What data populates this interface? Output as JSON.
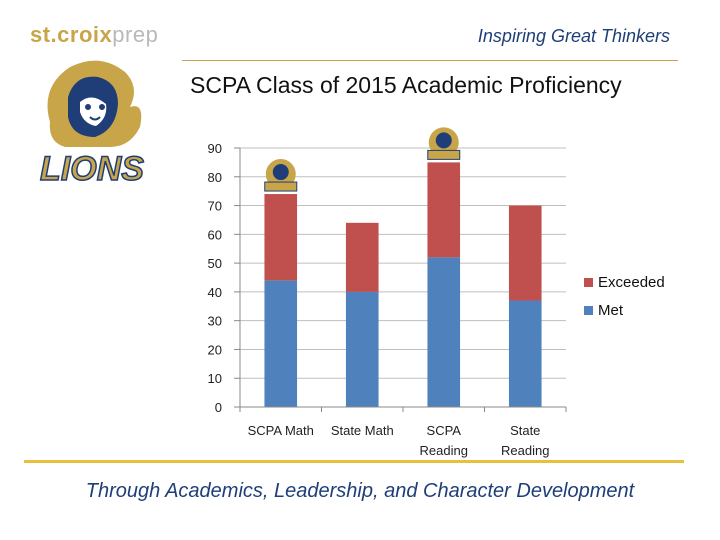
{
  "header": {
    "brand_main": "st.croix",
    "brand_suffix": "prep",
    "tagline": "Inspiring Great Thinkers",
    "crest_text": "LIONS"
  },
  "footer": {
    "text": "Through Academics, Leadership, and Character Development"
  },
  "colors": {
    "met": "#4f81bd",
    "exceeded": "#c0504d",
    "gold": "#c9a54a",
    "navy": "#1f3e78"
  },
  "chart_data": {
    "type": "bar",
    "stacked": true,
    "title": "SCPA Class of 2015 Academic Proficiency",
    "categories": [
      [
        "SCPA Math"
      ],
      [
        "State Math"
      ],
      [
        "SCPA",
        "Reading"
      ],
      [
        "State",
        "Reading"
      ]
    ],
    "series": [
      {
        "name": "Met",
        "values": [
          44,
          40,
          52,
          37
        ]
      },
      {
        "name": "Exceeded",
        "values": [
          30,
          24,
          33,
          33
        ]
      }
    ],
    "legend_labels": [
      "Exceeded",
      "Met"
    ],
    "legend_position": "right",
    "ylim": [
      0,
      90
    ],
    "yticks": [
      0,
      10,
      20,
      30,
      40,
      50,
      60,
      70,
      80,
      90
    ],
    "grid": true,
    "logo_marks_on": [
      "SCPA Math",
      "SCPA Reading"
    ]
  }
}
